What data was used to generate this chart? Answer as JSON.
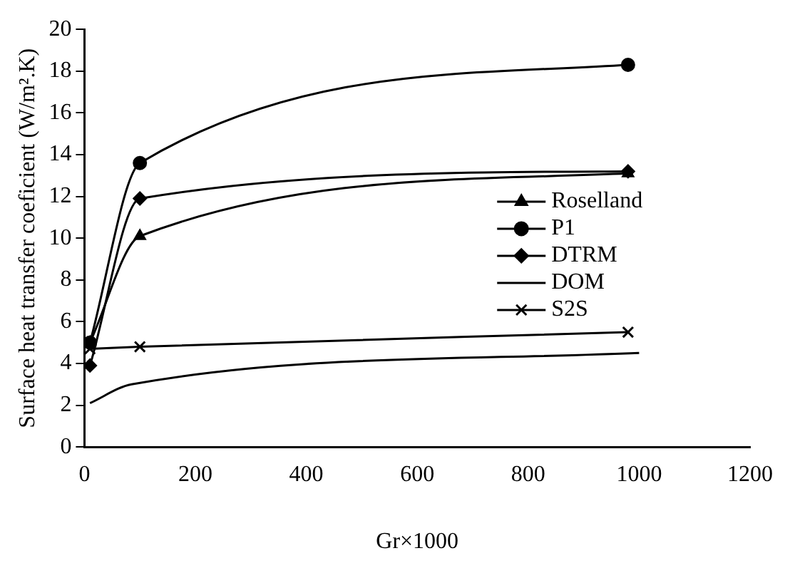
{
  "chart_data": {
    "type": "line",
    "xlabel": "Gr×1000",
    "ylabel": "Surface heat transfer coeficient (W/m².K)",
    "xlim": [
      0,
      1200
    ],
    "xticks": [
      0,
      200,
      400,
      600,
      800,
      1000,
      1200
    ],
    "ylim": [
      0,
      20
    ],
    "yticks": [
      0,
      2,
      4,
      6,
      8,
      10,
      12,
      14,
      16,
      18,
      20
    ],
    "grid": false,
    "legend": "right",
    "series": [
      {
        "name": "Roselland",
        "color": "#000000",
        "marker": "triangle",
        "x": [
          10,
          100,
          980
        ],
        "values": [
          5.0,
          10.1,
          13.1
        ]
      },
      {
        "name": "P1",
        "color": "#000000",
        "marker": "circle",
        "x": [
          10,
          100,
          980
        ],
        "values": [
          5.0,
          13.6,
          18.3
        ]
      },
      {
        "name": "DTRM",
        "color": "#000000",
        "marker": "diamond",
        "x": [
          10,
          100,
          980
        ],
        "values": [
          3.9,
          11.9,
          13.2
        ]
      },
      {
        "name": "DOM",
        "color": "#000000",
        "marker": "none",
        "x": [
          10,
          85,
          1000
        ],
        "values": [
          2.1,
          3.0,
          4.5
        ]
      },
      {
        "name": "S2S",
        "color": "#000000",
        "marker": "cross",
        "x": [
          10,
          100,
          980
        ],
        "values": [
          4.7,
          4.8,
          5.5
        ]
      }
    ]
  }
}
